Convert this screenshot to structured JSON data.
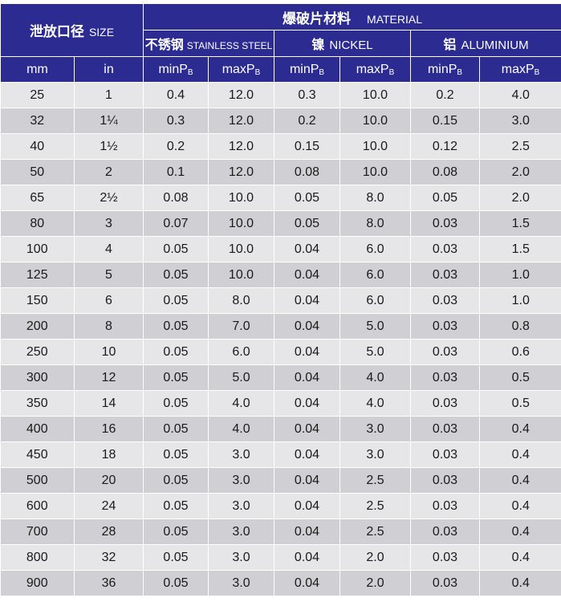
{
  "header": {
    "size_cn": "泄放口径",
    "size_en": "SIZE",
    "material_cn": "爆破片材料",
    "material_en": "MATERIAL",
    "materials": [
      {
        "cn": "不锈钢",
        "en": "STAINLESS STEEL"
      },
      {
        "cn": "镍",
        "en": "NICKEL"
      },
      {
        "cn": "铝",
        "en": "ALUMINIUM"
      }
    ],
    "unit_mm": "mm",
    "unit_in": "in",
    "min_label": "minP",
    "max_label": "maxP",
    "p_sub": "B"
  },
  "rows": [
    {
      "mm": "25",
      "in": "1",
      "ss_min": "0.4",
      "ss_max": "12.0",
      "ni_min": "0.3",
      "ni_max": "10.0",
      "al_min": "0.2",
      "al_max": "4.0"
    },
    {
      "mm": "32",
      "in": "1¼",
      "ss_min": "0.3",
      "ss_max": "12.0",
      "ni_min": "0.2",
      "ni_max": "10.0",
      "al_min": "0.15",
      "al_max": "3.0"
    },
    {
      "mm": "40",
      "in": "1½",
      "ss_min": "0.2",
      "ss_max": "12.0",
      "ni_min": "0.15",
      "ni_max": "10.0",
      "al_min": "0.12",
      "al_max": "2.5"
    },
    {
      "mm": "50",
      "in": "2",
      "ss_min": "0.1",
      "ss_max": "12.0",
      "ni_min": "0.08",
      "ni_max": "10.0",
      "al_min": "0.08",
      "al_max": "2.0"
    },
    {
      "mm": "65",
      "in": "2½",
      "ss_min": "0.08",
      "ss_max": "10.0",
      "ni_min": "0.05",
      "ni_max": "8.0",
      "al_min": "0.05",
      "al_max": "2.0"
    },
    {
      "mm": "80",
      "in": "3",
      "ss_min": "0.07",
      "ss_max": "10.0",
      "ni_min": "0.05",
      "ni_max": "8.0",
      "al_min": "0.03",
      "al_max": "1.5"
    },
    {
      "mm": "100",
      "in": "4",
      "ss_min": "0.05",
      "ss_max": "10.0",
      "ni_min": "0.04",
      "ni_max": "6.0",
      "al_min": "0.03",
      "al_max": "1.5"
    },
    {
      "mm": "125",
      "in": "5",
      "ss_min": "0.05",
      "ss_max": "10.0",
      "ni_min": "0.04",
      "ni_max": "6.0",
      "al_min": "0.03",
      "al_max": "1.0"
    },
    {
      "mm": "150",
      "in": "6",
      "ss_min": "0.05",
      "ss_max": "8.0",
      "ni_min": "0.04",
      "ni_max": "6.0",
      "al_min": "0.03",
      "al_max": "1.0"
    },
    {
      "mm": "200",
      "in": "8",
      "ss_min": "0.05",
      "ss_max": "7.0",
      "ni_min": "0.04",
      "ni_max": "5.0",
      "al_min": "0.03",
      "al_max": "0.8"
    },
    {
      "mm": "250",
      "in": "10",
      "ss_min": "0.05",
      "ss_max": "6.0",
      "ni_min": "0.04",
      "ni_max": "5.0",
      "al_min": "0.03",
      "al_max": "0.6"
    },
    {
      "mm": "300",
      "in": "12",
      "ss_min": "0.05",
      "ss_max": "5.0",
      "ni_min": "0.04",
      "ni_max": "4.0",
      "al_min": "0.03",
      "al_max": "0.5"
    },
    {
      "mm": "350",
      "in": "14",
      "ss_min": "0.05",
      "ss_max": "4.0",
      "ni_min": "0.04",
      "ni_max": "4.0",
      "al_min": "0.03",
      "al_max": "0.5"
    },
    {
      "mm": "400",
      "in": "16",
      "ss_min": "0.05",
      "ss_max": "4.0",
      "ni_min": "0.04",
      "ni_max": "3.0",
      "al_min": "0.03",
      "al_max": "0.4"
    },
    {
      "mm": "450",
      "in": "18",
      "ss_min": "0.05",
      "ss_max": "3.0",
      "ni_min": "0.04",
      "ni_max": "3.0",
      "al_min": "0.03",
      "al_max": "0.4"
    },
    {
      "mm": "500",
      "in": "20",
      "ss_min": "0.05",
      "ss_max": "3.0",
      "ni_min": "0.04",
      "ni_max": "2.5",
      "al_min": "0.03",
      "al_max": "0.4"
    },
    {
      "mm": "600",
      "in": "24",
      "ss_min": "0.05",
      "ss_max": "3.0",
      "ni_min": "0.04",
      "ni_max": "2.5",
      "al_min": "0.03",
      "al_max": "0.4"
    },
    {
      "mm": "700",
      "in": "28",
      "ss_min": "0.05",
      "ss_max": "3.0",
      "ni_min": "0.04",
      "ni_max": "2.5",
      "al_min": "0.03",
      "al_max": "0.4"
    },
    {
      "mm": "800",
      "in": "32",
      "ss_min": "0.05",
      "ss_max": "3.0",
      "ni_min": "0.04",
      "ni_max": "2.0",
      "al_min": "0.03",
      "al_max": "0.4"
    },
    {
      "mm": "900",
      "in": "36",
      "ss_min": "0.05",
      "ss_max": "3.0",
      "ni_min": "0.04",
      "ni_max": "2.0",
      "al_min": "0.03",
      "al_max": "0.4"
    }
  ]
}
